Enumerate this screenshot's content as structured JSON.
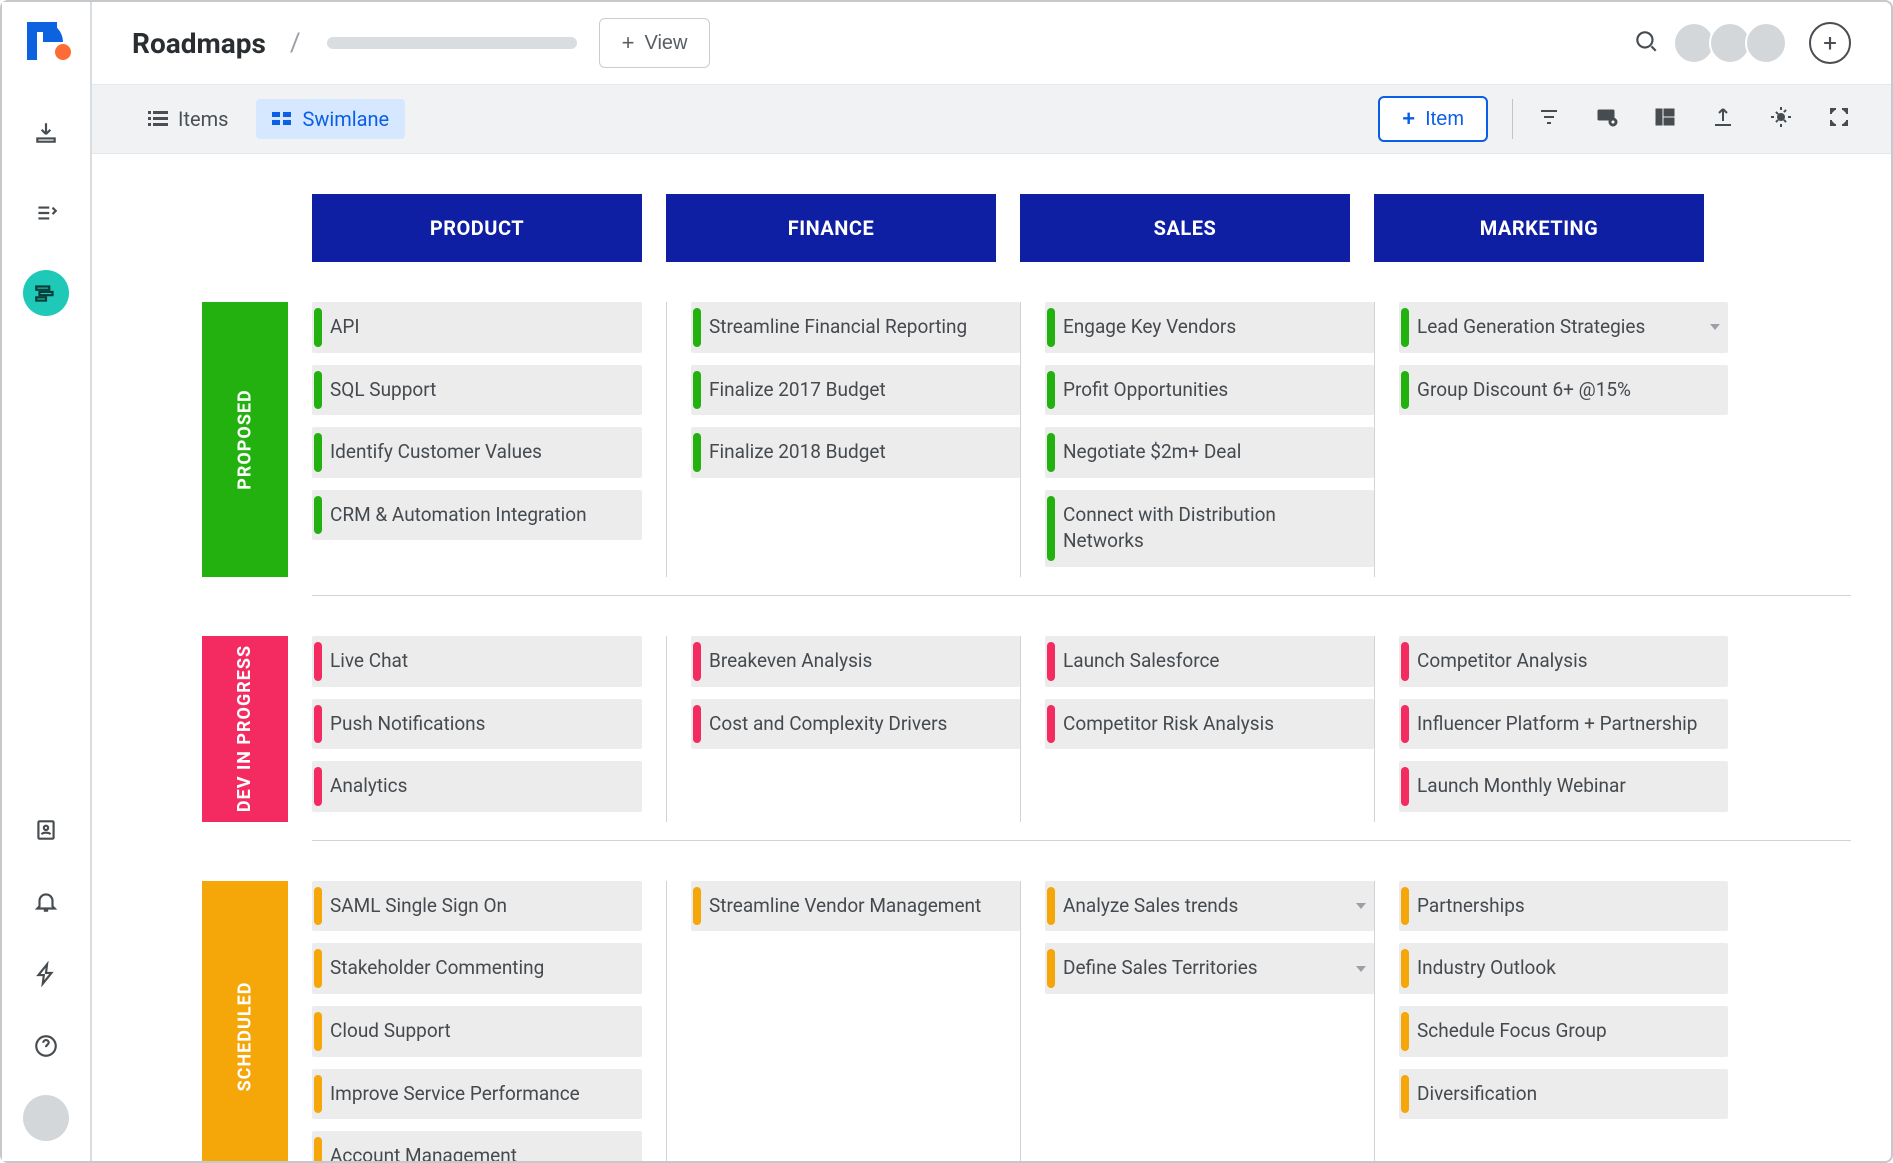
{
  "colors": {
    "col_header_bg": "#0f1fa3",
    "lane_proposed": "#23b10f",
    "lane_dev": "#f42b60",
    "lane_scheduled": "#f5a609",
    "card_bar_proposed": "#23b10f",
    "card_bar_dev": "#f42b60",
    "card_bar_scheduled": "#f5a609",
    "active_rail": "#1ec9b7"
  },
  "header": {
    "title": "Roadmaps",
    "view_btn": "View"
  },
  "toolbar": {
    "tab_items": "Items",
    "tab_swimlane": "Swimlane",
    "add_item": "Item"
  },
  "columns": [
    "PRODUCT",
    "FINANCE",
    "SALES",
    "MARKETING"
  ],
  "lanes": [
    {
      "id": "proposed",
      "label": "PROPOSED",
      "color": "#23b10f",
      "cells": [
        [
          "API",
          "SQL Support",
          "Identify Customer Values",
          "CRM & Automation Integration"
        ],
        [
          "Streamline Financial Reporting",
          "Finalize 2017 Budget",
          "Finalize 2018 Budget"
        ],
        [
          "Engage Key Vendors",
          "Profit Opportunities",
          "Negotiate $2m+ Deal",
          "Connect with Distribution Networks"
        ],
        [
          "Lead Generation Strategies",
          "Group Discount 6+ @15%"
        ]
      ],
      "chevrons": {
        "0": [],
        "1": [],
        "2": [],
        "3": [
          0
        ]
      }
    },
    {
      "id": "dev",
      "label": "DEV IN PROGRESS",
      "color": "#f42b60",
      "cells": [
        [
          "Live Chat",
          "Push Notifications",
          "Analytics"
        ],
        [
          "Breakeven Analysis",
          "Cost and Complexity Drivers"
        ],
        [
          "Launch Salesforce",
          "Competitor Risk Analysis"
        ],
        [
          "Competitor Analysis",
          "Influencer Platform + Partnership",
          "Launch Monthly Webinar"
        ]
      ],
      "chevrons": {}
    },
    {
      "id": "scheduled",
      "label": "SCHEDULED",
      "color": "#f5a609",
      "cells": [
        [
          "SAML Single Sign On",
          "Stakeholder Commenting",
          "Cloud Support",
          "Improve Service Performance",
          "Account Management"
        ],
        [
          "Streamline Vendor Management"
        ],
        [
          "Analyze Sales trends",
          "Define Sales Territories"
        ],
        [
          "Partnerships",
          "Industry Outlook",
          "Schedule Focus Group",
          "Diversification"
        ]
      ],
      "chevrons": {
        "2": [
          0,
          1
        ]
      }
    }
  ]
}
